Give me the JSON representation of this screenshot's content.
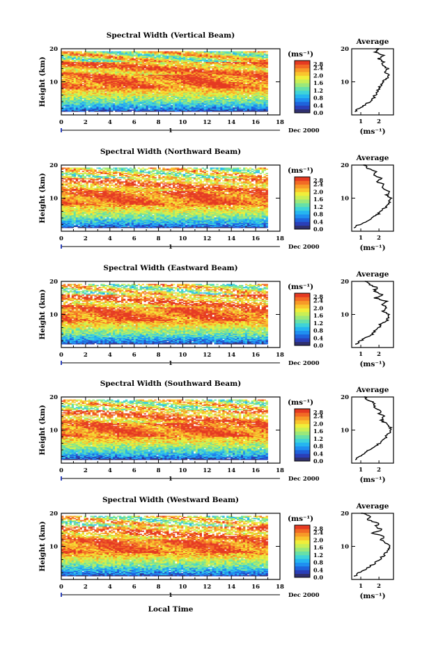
{
  "figure": {
    "x_axis_label": "Local Time",
    "day_label": "1",
    "month_year": "Dec 2000",
    "y_axis_label": "Height (km)",
    "colorbar_unit": "(ms⁻¹)",
    "profile_title": "Average",
    "profile_xlabel": "(ms⁻¹)"
  },
  "palette": [
    "#30306e",
    "#2a3fb8",
    "#1f63dc",
    "#1f8ff0",
    "#25b5f0",
    "#3fd3d8",
    "#67e0a8",
    "#9be87a",
    "#c9ef55",
    "#f0ee3a",
    "#f9c52d",
    "#f79a28",
    "#f26a25",
    "#e53a22"
  ],
  "chart_data": [
    {
      "type": "heatmap",
      "title": "Spectral Width (Vertical Beam)",
      "beam": "vertical",
      "x_range": [
        0,
        18
      ],
      "x_ticks": [
        0,
        2,
        4,
        6,
        8,
        10,
        12,
        14,
        16,
        18
      ],
      "y_range": [
        0,
        20
      ],
      "y_ticks": [
        10,
        20
      ],
      "data_end_hour": 17,
      "colorbar_ticks": [
        "2.8",
        "2.4",
        "2.0",
        "1.6",
        "1.2",
        "0.8",
        "0.4",
        "0.0"
      ],
      "colorbar_range": [
        0,
        2.8
      ],
      "profile": {
        "x_ticks": [
          1,
          2
        ],
        "x_range": [
          0.5,
          2.8
        ],
        "heights": [
          1,
          2,
          3,
          4,
          5,
          6,
          7,
          8,
          9,
          10,
          11,
          12,
          13,
          14,
          15,
          16,
          17,
          18,
          19,
          20
        ],
        "values": [
          0.7,
          0.9,
          1.2,
          1.5,
          1.7,
          1.8,
          1.9,
          2.0,
          2.1,
          2.2,
          2.4,
          2.6,
          2.3,
          2.5,
          2.2,
          2.3,
          2.0,
          2.2,
          1.8,
          1.9
        ]
      }
    },
    {
      "type": "heatmap",
      "title": "Spectral Width (Northward Beam)",
      "beam": "northward",
      "x_range": [
        0,
        18
      ],
      "x_ticks": [
        0,
        2,
        4,
        6,
        8,
        10,
        12,
        14,
        16,
        18
      ],
      "y_range": [
        0,
        20
      ],
      "y_ticks": [
        10,
        20
      ],
      "data_end_hour": 17,
      "colorbar_ticks": [
        "2.8",
        "2.4",
        "2.0",
        "1.6",
        "1.2",
        "0.8",
        "0.4",
        "0.0"
      ],
      "colorbar_range": [
        0,
        2.8
      ],
      "profile": {
        "x_ticks": [
          1,
          2
        ],
        "x_range": [
          0.5,
          2.8
        ],
        "heights": [
          1,
          2,
          3,
          4,
          5,
          6,
          7,
          8,
          9,
          10,
          11,
          12,
          13,
          14,
          15,
          16,
          17,
          18,
          19,
          20
        ],
        "values": [
          0.6,
          0.9,
          1.3,
          1.6,
          1.9,
          2.1,
          2.3,
          2.5,
          2.6,
          2.7,
          2.4,
          2.6,
          2.2,
          2.3,
          1.9,
          2.1,
          1.7,
          1.9,
          1.4,
          1.2
        ]
      }
    },
    {
      "type": "heatmap",
      "title": "Spectral Width (Eastward Beam)",
      "beam": "eastward",
      "x_range": [
        0,
        18
      ],
      "x_ticks": [
        0,
        2,
        4,
        6,
        8,
        10,
        12,
        14,
        16,
        18
      ],
      "y_range": [
        0,
        20
      ],
      "y_ticks": [
        10,
        20
      ],
      "data_end_hour": 17,
      "colorbar_ticks": [
        "2.8",
        "2.4",
        "2.0",
        "1.6",
        "1.2",
        "0.8",
        "0.4",
        "0.0"
      ],
      "colorbar_range": [
        0,
        2.8
      ],
      "profile": {
        "x_ticks": [
          1,
          2
        ],
        "x_range": [
          0.5,
          2.8
        ],
        "heights": [
          1,
          2,
          3,
          4,
          5,
          6,
          7,
          8,
          9,
          10,
          11,
          12,
          13,
          14,
          15,
          16,
          17,
          18,
          19,
          20
        ],
        "values": [
          0.7,
          1.0,
          1.3,
          1.6,
          1.8,
          2.0,
          2.1,
          2.4,
          2.5,
          2.6,
          2.2,
          2.5,
          2.1,
          2.4,
          1.8,
          2.2,
          1.7,
          1.9,
          1.5,
          1.3
        ]
      }
    },
    {
      "type": "heatmap",
      "title": "Spectral Width (Southward Beam)",
      "beam": "southward",
      "x_range": [
        0,
        18
      ],
      "x_ticks": [
        0,
        2,
        4,
        6,
        8,
        10,
        12,
        14,
        16,
        18
      ],
      "y_range": [
        0,
        20
      ],
      "y_ticks": [
        10,
        20
      ],
      "data_end_hour": 17,
      "colorbar_ticks": [
        "2.8",
        "2.4",
        "2.0",
        "1.6",
        "1.2",
        "0.8",
        "0.4",
        "0.0"
      ],
      "colorbar_range": [
        0,
        2.8
      ],
      "profile": {
        "x_ticks": [
          1,
          2
        ],
        "x_range": [
          0.5,
          2.8
        ],
        "heights": [
          1,
          2,
          3,
          4,
          5,
          6,
          7,
          8,
          9,
          10,
          11,
          12,
          13,
          14,
          15,
          16,
          17,
          18,
          19,
          20
        ],
        "values": [
          0.7,
          0.9,
          1.2,
          1.5,
          1.8,
          2.0,
          2.2,
          2.4,
          2.5,
          2.7,
          2.6,
          2.4,
          2.1,
          2.3,
          2.0,
          2.1,
          1.7,
          1.8,
          1.4,
          1.2
        ]
      }
    },
    {
      "type": "heatmap",
      "title": "Spectral Width (Westward Beam)",
      "beam": "westward",
      "x_range": [
        0,
        18
      ],
      "x_ticks": [
        0,
        2,
        4,
        6,
        8,
        10,
        12,
        14,
        16,
        18
      ],
      "y_range": [
        0,
        20
      ],
      "y_ticks": [
        10,
        20
      ],
      "data_end_hour": 17,
      "colorbar_ticks": [
        "2.8",
        "2.4",
        "2.0",
        "1.6",
        "1.2",
        "0.8",
        "0.4",
        "0.0"
      ],
      "colorbar_range": [
        0,
        2.8
      ],
      "profile": {
        "x_ticks": [
          1,
          2
        ],
        "x_range": [
          0.5,
          2.8
        ],
        "heights": [
          1,
          2,
          3,
          4,
          5,
          6,
          7,
          8,
          9,
          10,
          11,
          12,
          13,
          14,
          15,
          16,
          17,
          18,
          19,
          20
        ],
        "values": [
          0.7,
          0.9,
          1.2,
          1.5,
          1.8,
          2.0,
          2.2,
          2.4,
          2.5,
          2.6,
          2.4,
          2.1,
          2.3,
          1.6,
          2.2,
          1.8,
          2.0,
          1.4,
          1.6,
          1.1
        ]
      }
    }
  ]
}
